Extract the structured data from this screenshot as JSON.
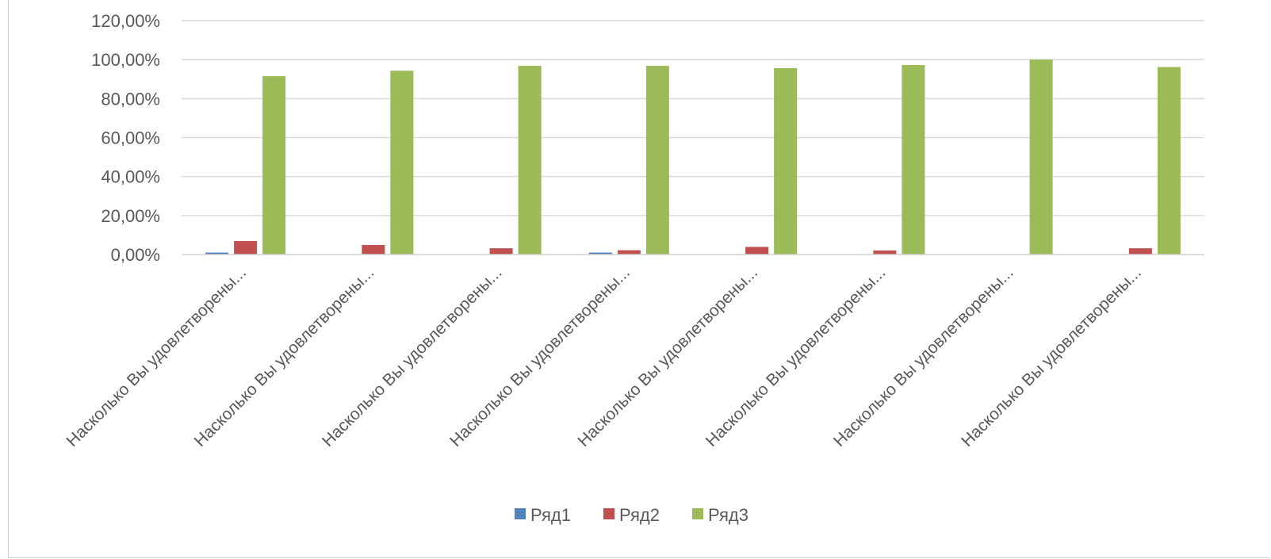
{
  "chart_data": {
    "type": "bar",
    "title": "",
    "xlabel": "",
    "ylabel": "",
    "ylim": [
      0,
      120
    ],
    "y_ticks": [
      "0,00%",
      "20,00%",
      "40,00%",
      "60,00%",
      "80,00%",
      "100,00%",
      "120,00%"
    ],
    "y_tick_values": [
      0,
      20,
      40,
      60,
      80,
      100,
      120
    ],
    "categories": [
      "Насколько Вы удовлетворены...",
      "Насколько Вы удовлетворены...",
      "Насколько Вы удовлетворены...",
      "Насколько Вы удовлетворены...",
      "Насколько Вы удовлетворены...",
      "Насколько Вы удовлетворены...",
      "Насколько Вы удовлетворены...",
      "Насколько Вы удовлетворены..."
    ],
    "series": [
      {
        "name": "Ряд1",
        "color": "#4f81bd",
        "values": [
          1.0,
          0,
          0,
          1.0,
          0,
          0,
          0,
          0
        ]
      },
      {
        "name": "Ряд2",
        "color": "#c0504d",
        "values": [
          6.9,
          4.9,
          3.2,
          2.2,
          3.9,
          2.1,
          0,
          3.2
        ]
      },
      {
        "name": "Ряд3",
        "color": "#9bbb59",
        "values": [
          91.5,
          94.3,
          96.8,
          96.8,
          95.6,
          97.2,
          100,
          96.2
        ]
      }
    ],
    "grid": true,
    "legend_position": "bottom"
  }
}
